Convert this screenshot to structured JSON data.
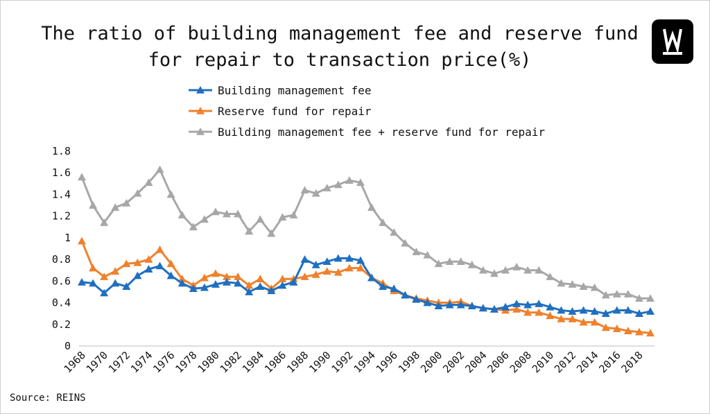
{
  "title_line1": "The ratio of building management fee and reserve fund",
  "title_line2": "for repair to transaction price(%)",
  "source": "Source: REINS",
  "chart_data": {
    "type": "line",
    "title": "The ratio of building management fee and reserve fund for repair to transaction price(%)",
    "xlabel": "",
    "ylabel": "",
    "ylim": [
      0,
      1.8
    ],
    "yticks": [
      "0",
      "0.2",
      "0.4",
      "0.6",
      "0.8",
      "1",
      "1.2",
      "1.4",
      "1.6",
      "1.8"
    ],
    "x_start": 1968,
    "x_end": 2019,
    "xtick_labels": [
      "1968",
      "1970",
      "1972",
      "1974",
      "1976",
      "1978",
      "1980",
      "1982",
      "1984",
      "1986",
      "1988",
      "1990",
      "1992",
      "1994",
      "1996",
      "1998",
      "2000",
      "2002",
      "2004",
      "2006",
      "2008",
      "2010",
      "2012",
      "2014",
      "2016",
      "2018"
    ],
    "legend_position": "top",
    "grid": false,
    "series": [
      {
        "name": "Building management fee",
        "color": "#1f6fc1",
        "values": [
          0.59,
          0.58,
          0.49,
          0.58,
          0.55,
          0.65,
          0.71,
          0.74,
          0.65,
          0.58,
          0.53,
          0.54,
          0.57,
          0.59,
          0.58,
          0.5,
          0.55,
          0.51,
          0.56,
          0.59,
          0.8,
          0.75,
          0.78,
          0.81,
          0.81,
          0.79,
          0.63,
          0.55,
          0.53,
          0.47,
          0.43,
          0.4,
          0.37,
          0.38,
          0.38,
          0.37,
          0.35,
          0.34,
          0.36,
          0.39,
          0.38,
          0.39,
          0.36,
          0.33,
          0.32,
          0.33,
          0.32,
          0.3,
          0.33,
          0.33,
          0.3,
          0.32
        ]
      },
      {
        "name": "Reserve fund for repair",
        "color": "#f0812c",
        "values": [
          0.97,
          0.72,
          0.64,
          0.69,
          0.76,
          0.77,
          0.8,
          0.89,
          0.76,
          0.62,
          0.56,
          0.63,
          0.67,
          0.64,
          0.64,
          0.56,
          0.62,
          0.53,
          0.62,
          0.62,
          0.64,
          0.66,
          0.69,
          0.68,
          0.72,
          0.72,
          0.63,
          0.58,
          0.51,
          0.47,
          0.44,
          0.42,
          0.4,
          0.4,
          0.41,
          0.37,
          0.35,
          0.34,
          0.33,
          0.34,
          0.31,
          0.31,
          0.28,
          0.25,
          0.25,
          0.22,
          0.22,
          0.17,
          0.16,
          0.14,
          0.13,
          0.12
        ]
      },
      {
        "name": "Building management fee + reserve fund for repair",
        "color": "#a7a7a7",
        "values": [
          1.56,
          1.3,
          1.14,
          1.28,
          1.32,
          1.41,
          1.51,
          1.63,
          1.4,
          1.21,
          1.1,
          1.17,
          1.24,
          1.22,
          1.22,
          1.06,
          1.17,
          1.04,
          1.19,
          1.21,
          1.44,
          1.41,
          1.46,
          1.49,
          1.53,
          1.51,
          1.28,
          1.14,
          1.05,
          0.95,
          0.87,
          0.84,
          0.76,
          0.78,
          0.78,
          0.75,
          0.7,
          0.67,
          0.7,
          0.73,
          0.7,
          0.7,
          0.64,
          0.58,
          0.57,
          0.55,
          0.54,
          0.47,
          0.48,
          0.48,
          0.44,
          0.44
        ]
      }
    ]
  }
}
